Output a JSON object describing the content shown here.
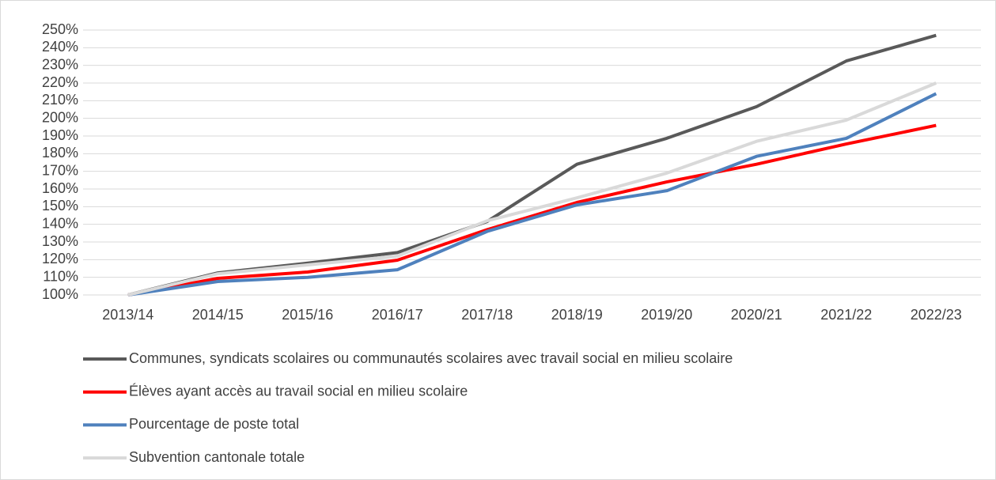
{
  "chart_data": {
    "type": "line",
    "categories": [
      "2013/14",
      "2014/15",
      "2015/16",
      "2016/17",
      "2017/18",
      "2018/19",
      "2019/20",
      "2020/21",
      "2021/22",
      "2022/23"
    ],
    "series": [
      {
        "name": "Communes, syndicats scolaires ou communautés scolaires avec travail social en milieu scolaire",
        "color": "#595959",
        "values": [
          100,
          112.5,
          118,
          124,
          141.6,
          174,
          188.7,
          206.6,
          232.5,
          247
        ]
      },
      {
        "name": "Élèves ayant accès au travail social en milieu scolaire",
        "color": "#ff0000",
        "values": [
          100,
          109.4,
          113,
          119.7,
          137,
          152.4,
          164,
          174,
          185.5,
          196
        ]
      },
      {
        "name": "Pourcentage de poste total",
        "color": "#4f81bd",
        "values": [
          100,
          107.6,
          110,
          114.3,
          136,
          151,
          159,
          178.5,
          188.7,
          214
        ]
      },
      {
        "name": "Subvention cantonale totale",
        "color": "#d9d9d9",
        "values": [
          100,
          112,
          117,
          122,
          142,
          155,
          169,
          187,
          199,
          220
        ]
      }
    ],
    "ylim": [
      100,
      250
    ],
    "yticks": [
      {
        "value": 100,
        "label": "100%"
      },
      {
        "value": 110,
        "label": "110%"
      },
      {
        "value": 120,
        "label": "120%"
      },
      {
        "value": 130,
        "label": "130%"
      },
      {
        "value": 140,
        "label": "140%"
      },
      {
        "value": 150,
        "label": "150%"
      },
      {
        "value": 160,
        "label": "160%"
      },
      {
        "value": 170,
        "label": "170%"
      },
      {
        "value": 180,
        "label": "180%"
      },
      {
        "value": 190,
        "label": "190%"
      },
      {
        "value": 200,
        "label": "200%"
      },
      {
        "value": 210,
        "label": "210%"
      },
      {
        "value": 220,
        "label": "220%"
      },
      {
        "value": 230,
        "label": "230%"
      },
      {
        "value": 240,
        "label": "240%"
      },
      {
        "value": 250,
        "label": "250%"
      }
    ],
    "grid": true,
    "legend": "bottom"
  }
}
